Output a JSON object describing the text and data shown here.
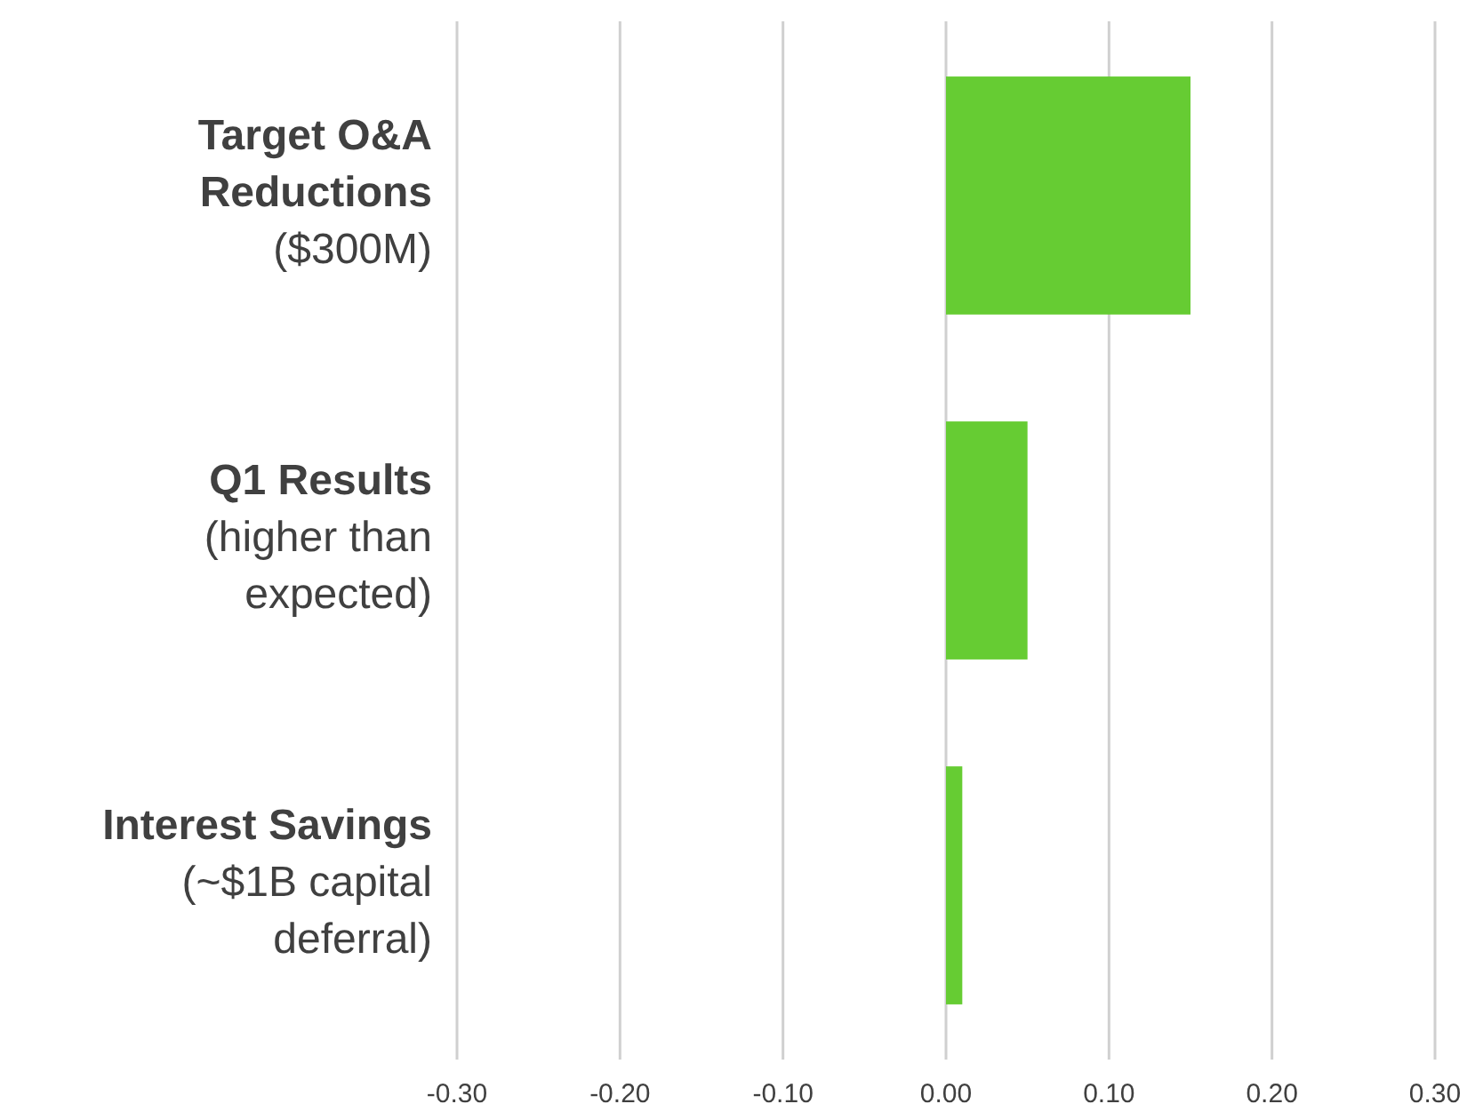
{
  "chart_data": {
    "type": "bar",
    "orientation": "horizontal",
    "categories": [
      "Target O&A\nReductions\n($300M)",
      "Q1 Results\n(higher than\nexpected)",
      "Interest Savings\n(~$1B capital\ndeferral)"
    ],
    "values": [
      0.15,
      0.05,
      0.01
    ],
    "color": "#66cc33",
    "xlim": [
      -0.3,
      0.3
    ],
    "xticks": [
      {
        "value": -0.3,
        "label": "-0.30"
      },
      {
        "value": -0.2,
        "label": "-0.20"
      },
      {
        "value": -0.1,
        "label": "-0.10"
      },
      {
        "value": 0,
        "label": "0.00"
      },
      {
        "value": 0.1,
        "label": "0.10"
      },
      {
        "value": 0.2,
        "label": "0.20"
      },
      {
        "value": 0.3,
        "label": "0.30"
      }
    ],
    "grid": "x"
  }
}
